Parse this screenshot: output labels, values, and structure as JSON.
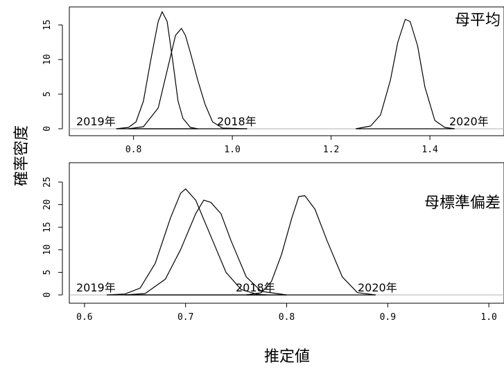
{
  "chart_data": [
    {
      "type": "line",
      "title": "母平均",
      "xlim": [
        0.67,
        1.55
      ],
      "ylim": [
        0,
        16.5
      ],
      "xticks": [
        0.8,
        1.0,
        1.2,
        1.4
      ],
      "xtick_labels": [
        "0.8",
        "1.0",
        "1.2",
        "1.4"
      ],
      "yticks": [
        0,
        5,
        10,
        15
      ],
      "ytick_labels": [
        "0",
        "5",
        "10",
        "15"
      ],
      "series": [
        {
          "name": "2019年",
          "x": [
            0.765,
            0.79,
            0.805,
            0.82,
            0.835,
            0.85,
            0.858,
            0.868,
            0.88,
            0.89,
            0.9,
            0.915,
            0.93
          ],
          "y": [
            0.0,
            0.2,
            1.0,
            4.0,
            10.0,
            15.5,
            16.9,
            15.5,
            9.5,
            4.0,
            1.5,
            0.2,
            0.0
          ]
        },
        {
          "name": "2018年",
          "x": [
            0.79,
            0.82,
            0.85,
            0.87,
            0.885,
            0.897,
            0.905,
            0.915,
            0.93,
            0.945,
            0.96,
            0.98,
            1.03
          ],
          "y": [
            0.0,
            0.3,
            3.0,
            9.0,
            13.5,
            14.5,
            13.5,
            11.0,
            7.0,
            3.5,
            1.0,
            0.1,
            0.0
          ]
        },
        {
          "name": "2020年",
          "x": [
            1.25,
            1.28,
            1.3,
            1.32,
            1.335,
            1.35,
            1.36,
            1.375,
            1.39,
            1.41,
            1.43,
            1.45
          ],
          "y": [
            0.0,
            0.4,
            2.0,
            7.0,
            12.5,
            15.8,
            15.5,
            12.0,
            6.0,
            1.2,
            0.2,
            0.0
          ]
        }
      ],
      "annotations": [
        "2019年",
        "2018年",
        "2020年"
      ]
    },
    {
      "type": "line",
      "title": "母標準偏差",
      "xlim": [
        0.585,
        1.015
      ],
      "ylim": [
        0,
        25.5
      ],
      "xticks": [
        0.6,
        0.7,
        0.8,
        0.9,
        1.0
      ],
      "xtick_labels": [
        "0.6",
        "0.7",
        "0.8",
        "0.9",
        "1.0"
      ],
      "yticks": [
        0,
        5,
        10,
        15,
        20,
        25
      ],
      "ytick_labels": [
        "0",
        "5",
        "10",
        "15",
        "20",
        "25"
      ],
      "series": [
        {
          "name": "2019年",
          "x": [
            0.622,
            0.64,
            0.655,
            0.67,
            0.685,
            0.695,
            0.7,
            0.71,
            0.725,
            0.74,
            0.755,
            0.77,
            0.78
          ],
          "y": [
            0.0,
            0.2,
            1.5,
            7.0,
            17.0,
            22.5,
            23.5,
            21.0,
            13.0,
            5.0,
            1.2,
            0.2,
            0.0
          ]
        },
        {
          "name": "2018年",
          "x": [
            0.64,
            0.66,
            0.68,
            0.695,
            0.71,
            0.718,
            0.725,
            0.735,
            0.745,
            0.76,
            0.775,
            0.8
          ],
          "y": [
            0.0,
            0.3,
            3.5,
            10.0,
            18.0,
            21.0,
            20.5,
            18.0,
            12.0,
            4.0,
            0.8,
            0.0
          ]
        },
        {
          "name": "2020年",
          "x": [
            0.76,
            0.775,
            0.785,
            0.795,
            0.805,
            0.812,
            0.818,
            0.828,
            0.84,
            0.855,
            0.87,
            0.888
          ],
          "y": [
            0.0,
            0.5,
            3.0,
            9.0,
            17.0,
            21.8,
            22.0,
            19.0,
            12.0,
            4.0,
            0.5,
            0.0
          ]
        }
      ],
      "annotations": [
        "2019年",
        "2018年",
        "2020年"
      ]
    }
  ],
  "ylabel": "確率密度",
  "xlabel": "推定値"
}
